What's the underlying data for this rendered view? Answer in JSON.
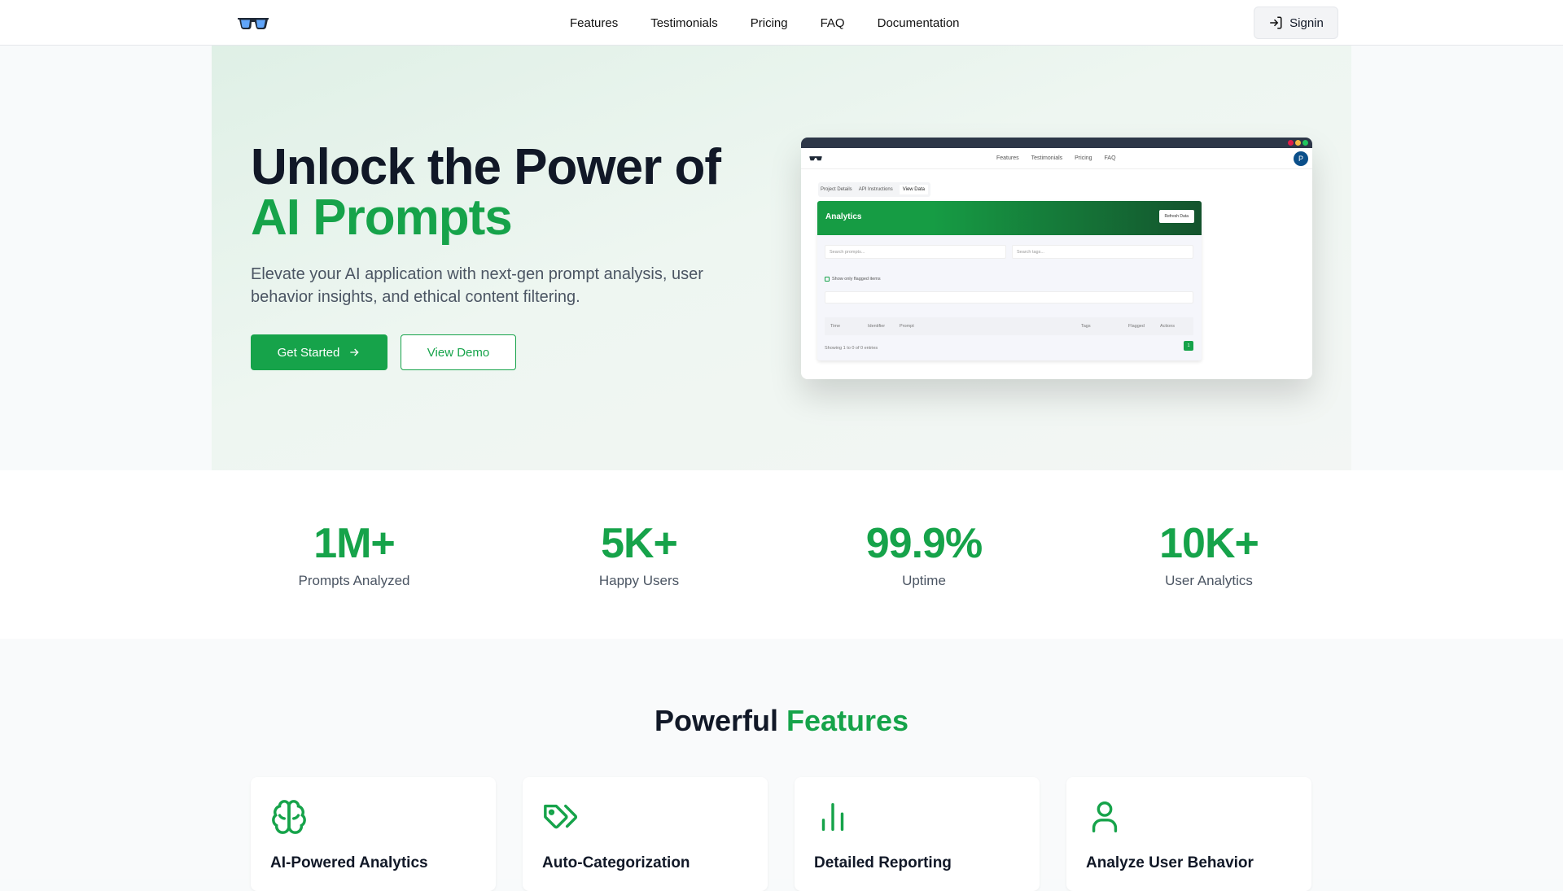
{
  "nav": {
    "links": [
      "Features",
      "Testimonials",
      "Pricing",
      "FAQ",
      "Documentation"
    ],
    "signin": "Signin"
  },
  "hero": {
    "title_line1": "Unlock the Power of",
    "title_line2": "AI Prompts",
    "subtitle": "Elevate your AI application with next-gen prompt analysis, user behavior insights, and ethical content filtering.",
    "get_started": "Get Started",
    "view_demo": "View Demo"
  },
  "mockup": {
    "nav": [
      "Features",
      "Testimonials",
      "Pricing",
      "FAQ"
    ],
    "avatar": "P",
    "tabs": [
      "Project Details",
      "API Instructions",
      "View Data"
    ],
    "panel_title": "Analytics",
    "refresh": "Refresh Data",
    "search_prompts": "Search prompts...",
    "search_tags": "Search tags...",
    "flagged_label": "Show only flagged items",
    "columns": [
      "Time",
      "Identifier",
      "Prompt",
      "Tags",
      "Flagged",
      "Actions"
    ],
    "entries": "Showing 1 to 0 of 0 entries",
    "page": "1"
  },
  "stats": [
    {
      "value": "1M+",
      "label": "Prompts Analyzed"
    },
    {
      "value": "5K+",
      "label": "Happy Users"
    },
    {
      "value": "99.9%",
      "label": "Uptime"
    },
    {
      "value": "10K+",
      "label": "User Analytics"
    }
  ],
  "features": {
    "title_a": "Powerful",
    "title_b": "Features",
    "cards": [
      {
        "title": "AI-Powered Analytics",
        "icon": "brain-icon"
      },
      {
        "title": "Auto-Categorization",
        "icon": "tags-icon"
      },
      {
        "title": "Detailed Reporting",
        "icon": "bar-chart-icon"
      },
      {
        "title": "Analyze User Behavior",
        "icon": "user-icon"
      }
    ]
  },
  "colors": {
    "accent": "#16a34a"
  }
}
